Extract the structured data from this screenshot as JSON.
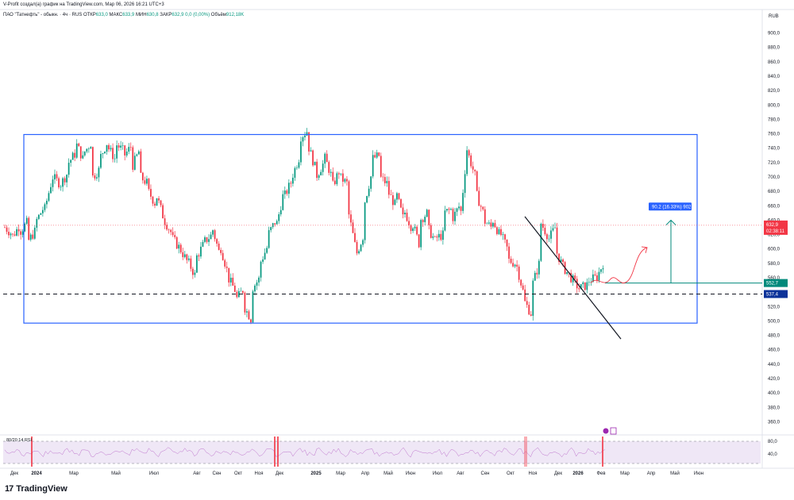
{
  "header": {
    "text": "V-Profit создал(а) график на TradingView.com, Мар 06, 2026 16:21 UTC+3"
  },
  "symbol": {
    "name": "ПАО \"Татнефть\" - обыкн. · 4ч · RUS",
    "open_label": "ОТКР",
    "open": "633,0",
    "high_label": "МАКС",
    "high": "633,9",
    "low_label": "МИН",
    "low": "630,8",
    "close_label": "ЗАКР",
    "close": "632,9",
    "change": "0,0 (0,00%)",
    "volume_label": "Объём",
    "volume": "912,18K"
  },
  "currency": "RUB",
  "rsi": {
    "label": "80/20 14 RSI"
  },
  "brand": {
    "name": "TradingView",
    "mark": "17"
  },
  "colors": {
    "up": "#089981",
    "down": "#f23645",
    "box": "#2962ff",
    "measure": "#00897b",
    "rsi_fill": "#e1d4ef",
    "rsi_line": "#9c27b0",
    "price_tag": "#f23645",
    "level_tag": "#00897b",
    "support_tag": "#0c3299"
  },
  "chart_data": {
    "type": "candlestick",
    "y_ticks": [
      "900,0",
      "880,0",
      "860,0",
      "840,0",
      "820,0",
      "800,0",
      "780,0",
      "760,0",
      "740,0",
      "720,0",
      "700,0",
      "680,0",
      "660,0",
      "640,0",
      "620,0",
      "600,0",
      "580,0",
      "560,0",
      "540,0",
      "520,0",
      "500,0",
      "480,0",
      "460,0",
      "440,0",
      "420,0",
      "400,0",
      "380,0",
      "360,0"
    ],
    "ylim": [
      345,
      915
    ],
    "rsi_ticks": [
      "80,0",
      "40,0"
    ],
    "x_ticks": [
      "Дек",
      "2024",
      "Мар",
      "Май",
      "Июл",
      "Авг",
      "Сен",
      "Окт",
      "Ноя",
      "Дек",
      "2025",
      "Мар",
      "Апр",
      "Май",
      "Июн",
      "Июл",
      "Авг",
      "Сен",
      "Окт",
      "Ноя",
      "Дек",
      "2026",
      "Фев",
      "Мар",
      "Апр",
      "Май",
      "Июн",
      "Июл"
    ],
    "path_points": [
      [
        630,
        620
      ],
      [
        618,
        635
      ],
      [
        625,
        640
      ],
      [
        612,
        628
      ],
      [
        640,
        660
      ],
      [
        655,
        700
      ],
      [
        700,
        690
      ],
      [
        690,
        708
      ],
      [
        720,
        735
      ],
      [
        745,
        720
      ],
      [
        735,
        750
      ],
      [
        700,
        712
      ],
      [
        728,
        752
      ],
      [
        740,
        722
      ],
      [
        745,
        735
      ],
      [
        730,
        745
      ],
      [
        715,
        740
      ],
      [
        700,
        690
      ],
      [
        680,
        660
      ],
      [
        675,
        640
      ],
      [
        640,
        620
      ],
      [
        615,
        600
      ],
      [
        600,
        580
      ],
      [
        582,
        560
      ],
      [
        588,
        608
      ],
      [
        610,
        620
      ],
      [
        630,
        590
      ],
      [
        605,
        565
      ],
      [
        560,
        540
      ],
      [
        530,
        545
      ],
      [
        520,
        500
      ],
      [
        545,
        560
      ],
      [
        580,
        605
      ],
      [
        620,
        640
      ],
      [
        630,
        680
      ],
      [
        672,
        695
      ],
      [
        700,
        730
      ],
      [
        755,
        765
      ],
      [
        745,
        710
      ],
      [
        700,
        720
      ],
      [
        730,
        700
      ],
      [
        685,
        710
      ],
      [
        700,
        690
      ],
      [
        655,
        600
      ],
      [
        590,
        620
      ],
      [
        660,
        705
      ],
      [
        725,
        730
      ],
      [
        700,
        690
      ],
      [
        680,
        660
      ],
      [
        680,
        640
      ],
      [
        655,
        630
      ],
      [
        640,
        605
      ],
      [
        640,
        650
      ],
      [
        630,
        610
      ],
      [
        615,
        620
      ],
      [
        650,
        655
      ],
      [
        640,
        660
      ],
      [
        630,
        745
      ],
      [
        735,
        700
      ],
      [
        680,
        650
      ],
      [
        640,
        630
      ],
      [
        645,
        620
      ],
      [
        625,
        600
      ],
      [
        585,
        580
      ],
      [
        585,
        540
      ],
      [
        530,
        510
      ],
      [
        545,
        580
      ],
      [
        640,
        620
      ],
      [
        610,
        630
      ],
      [
        600,
        575
      ],
      [
        575,
        560
      ],
      [
        560,
        545
      ],
      [
        545,
        550
      ],
      [
        555,
        560
      ],
      [
        555,
        580
      ],
      [
        630,
        632.9
      ]
    ],
    "box": {
      "x_start_label": "2024",
      "top": 759,
      "bottom": 497
    },
    "support_level": "537,4",
    "target_level": "552,7",
    "current_price": "632,9",
    "countdown": "02:38:11",
    "measure_label": "90.2 (16.33%) 902",
    "trendline": {
      "from": 645,
      "to": 475
    }
  }
}
